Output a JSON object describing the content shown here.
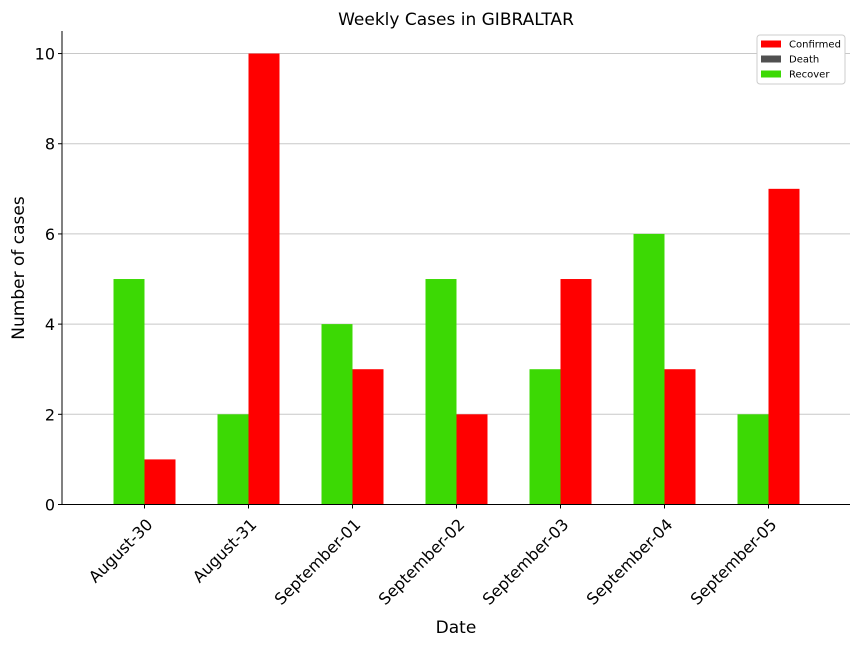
{
  "chart_data": {
    "type": "bar",
    "title": "Weekly Cases in GIBRALTAR",
    "xlabel": "Date",
    "ylabel": "Number of cases",
    "categories": [
      "August-30",
      "August-31",
      "September-01",
      "September-02",
      "September-03",
      "September-04",
      "September-05"
    ],
    "series": [
      {
        "name": "Recover",
        "color": "#3cd904",
        "values": [
          5,
          2,
          4,
          5,
          3,
          6,
          2
        ]
      },
      {
        "name": "Confirmed",
        "color": "#ff0000",
        "values": [
          1,
          10,
          3,
          2,
          5,
          3,
          7
        ]
      },
      {
        "name": "Death",
        "color": "#505050",
        "values": [
          0,
          0,
          0,
          0,
          0,
          0,
          0
        ]
      }
    ],
    "legend": {
      "order": [
        "Confirmed",
        "Death",
        "Recover"
      ],
      "position": "top-right"
    },
    "yticks": [
      0,
      2,
      4,
      6,
      8,
      10
    ],
    "ylim": [
      0,
      10.5
    ],
    "grid": "horizontal"
  }
}
